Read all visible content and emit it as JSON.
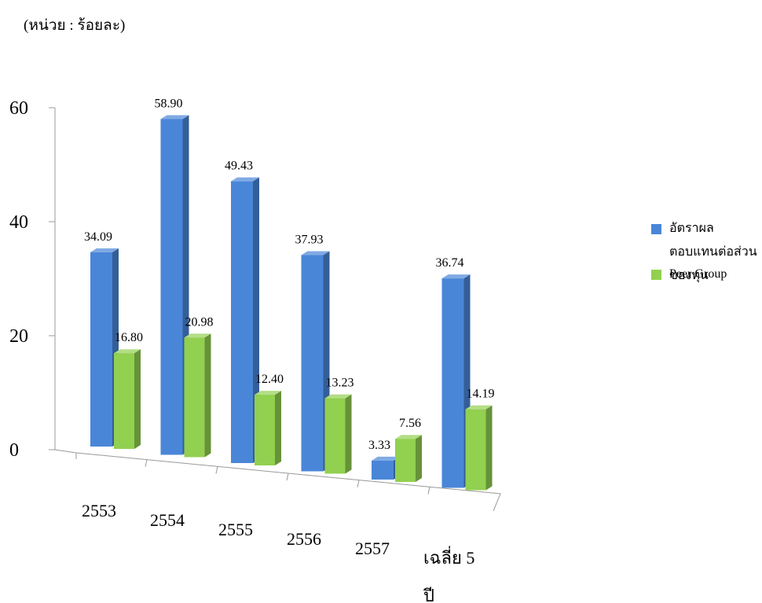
{
  "chart_data": {
    "type": "bar3d",
    "unit_label": "(หน่วย : ร้อยละ)",
    "categories": [
      "2553",
      "2554",
      "2555",
      "2556",
      "2557",
      "เฉลี่ย 5 ปี"
    ],
    "series": [
      {
        "name": "อัตราผลตอบแทนต่อส่วนของทุน",
        "color": "#4a86d8",
        "values": [
          34.09,
          58.9,
          49.43,
          37.93,
          3.33,
          36.74
        ],
        "value_labels": [
          "34.09",
          "58.90",
          "49.43",
          "37.93",
          "3.33",
          "36.74"
        ]
      },
      {
        "name": "Peer Group",
        "color": "#92d050",
        "values": [
          16.8,
          20.98,
          12.4,
          13.23,
          7.56,
          14.19
        ],
        "value_labels": [
          "16.80",
          "20.98",
          "12.40",
          "13.23",
          "7.56",
          "14.19"
        ]
      }
    ],
    "ylim": [
      0,
      60
    ],
    "yticks": [
      0,
      20,
      40,
      60
    ],
    "legend": "right"
  }
}
